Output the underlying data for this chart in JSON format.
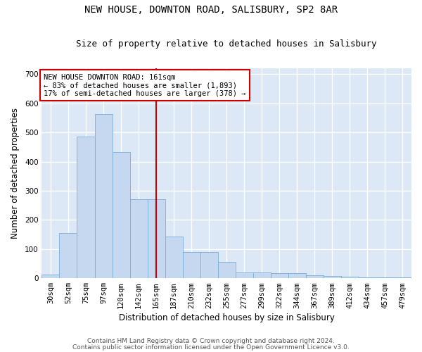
{
  "title": "NEW HOUSE, DOWNTON ROAD, SALISBURY, SP2 8AR",
  "subtitle": "Size of property relative to detached houses in Salisbury",
  "xlabel": "Distribution of detached houses by size in Salisbury",
  "ylabel": "Number of detached properties",
  "categories": [
    "30sqm",
    "52sqm",
    "75sqm",
    "97sqm",
    "120sqm",
    "142sqm",
    "165sqm",
    "187sqm",
    "210sqm",
    "232sqm",
    "255sqm",
    "277sqm",
    "299sqm",
    "322sqm",
    "344sqm",
    "367sqm",
    "389sqm",
    "412sqm",
    "434sqm",
    "457sqm",
    "479sqm"
  ],
  "values": [
    12,
    155,
    487,
    563,
    432,
    270,
    270,
    142,
    90,
    90,
    55,
    20,
    20,
    18,
    18,
    9,
    7,
    5,
    4,
    4,
    4
  ],
  "bar_color": "#c5d8f0",
  "bar_edge_color": "#7aaed6",
  "vline_color": "#cc0000",
  "vline_index": 6,
  "annotation_text": "NEW HOUSE DOWNTON ROAD: 161sqm\n← 83% of detached houses are smaller (1,893)\n17% of semi-detached houses are larger (378) →",
  "annotation_box_color": "#ffffff",
  "annotation_box_edge_color": "#cc0000",
  "ylim": [
    0,
    720
  ],
  "yticks": [
    0,
    100,
    200,
    300,
    400,
    500,
    600,
    700
  ],
  "plot_bg_color": "#dce8f5",
  "grid_color": "#ffffff",
  "footer1": "Contains HM Land Registry data © Crown copyright and database right 2024.",
  "footer2": "Contains public sector information licensed under the Open Government Licence v3.0.",
  "title_fontsize": 10,
  "subtitle_fontsize": 9,
  "xlabel_fontsize": 8.5,
  "ylabel_fontsize": 8.5,
  "tick_fontsize": 7.5,
  "annotation_fontsize": 7.5,
  "footer_fontsize": 6.5
}
